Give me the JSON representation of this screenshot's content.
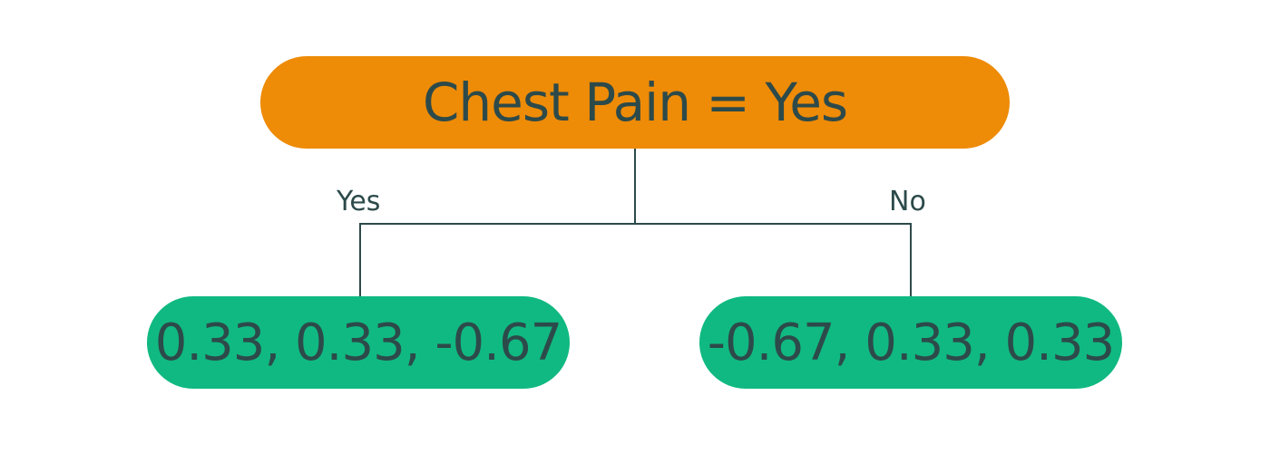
{
  "colors": {
    "root_fill": "#ee8b07",
    "leaf_fill": "#10b981",
    "text": "#2d4a4a",
    "edge": "#2d4a4a"
  },
  "root": {
    "label": "Chest Pain = Yes"
  },
  "branches": {
    "left_label": "Yes",
    "right_label": "No"
  },
  "leaves": [
    {
      "label": "0.33, 0.33, -0.67"
    },
    {
      "label": "-0.67, 0.33, 0.33"
    }
  ]
}
